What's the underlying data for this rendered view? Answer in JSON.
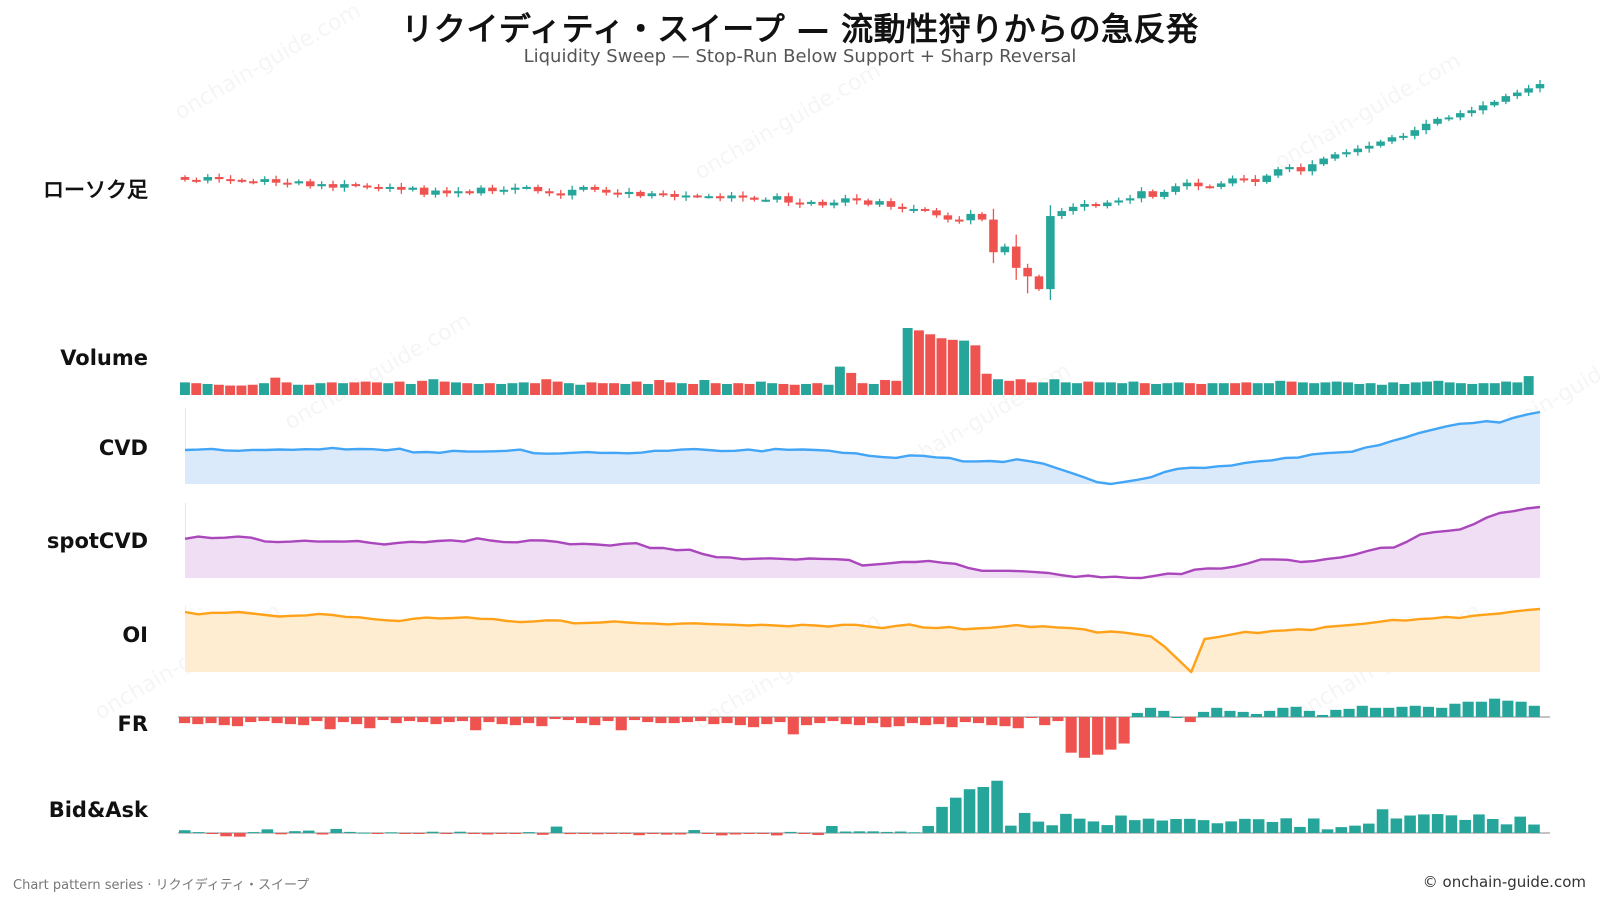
{
  "title": "リクイディティ・スイープ — 流動性狩りからの急反発",
  "subtitle": "Liquidity Sweep — Stop-Run Below Support + Sharp Reversal",
  "footer_left": "Chart pattern series · リクイディティ・スイープ",
  "footer_right": "© onchain-guide.com",
  "watermark": "onchain-guide.com",
  "colors": {
    "up": "#26a69a",
    "down": "#ef5350",
    "cvd": "#42a5f5",
    "cvd_fill": "#dbeafb",
    "spot_cvd": "#ab47bc",
    "spot_cvd_fill": "#f0def5",
    "oi": "#ffa21a",
    "oi_fill": "#ffedd2"
  },
  "chart_data": {
    "type": "multi-panel",
    "panels": [
      {
        "id": "candles",
        "label": "ローソク足",
        "type": "candlestick"
      },
      {
        "id": "volume",
        "label": "Volume",
        "type": "bar"
      },
      {
        "id": "cvd",
        "label": "CVD",
        "type": "area"
      },
      {
        "id": "spot_cvd",
        "label": "spotCVD",
        "type": "area"
      },
      {
        "id": "oi",
        "label": "OI",
        "type": "area"
      },
      {
        "id": "fr",
        "label": "FR",
        "type": "bar"
      },
      {
        "id": "bid_ask",
        "label": "Bid&Ask",
        "type": "bar"
      }
    ],
    "candles": {
      "start": 100.0,
      "sweep_low": 84.0,
      "end": 113.5,
      "closes": [
        100.0,
        99.9,
        100.4,
        100.1,
        100.0,
        99.8,
        99.7,
        100.1,
        99.6,
        99.5,
        99.8,
        99.1,
        99.4,
        98.9,
        99.4,
        99.2,
        99.0,
        98.8,
        99.0,
        98.6,
        98.9,
        97.9,
        98.5,
        98.1,
        98.4,
        98.1,
        98.9,
        98.4,
        98.6,
        98.9,
        99.0,
        98.4,
        98.1,
        97.8,
        98.6,
        99.0,
        98.6,
        98.2,
        98.0,
        98.3,
        97.7,
        98.1,
        98.0,
        97.6,
        97.8,
        97.7,
        97.7,
        97.4,
        97.8,
        97.5,
        97.2,
        97.2,
        97.7,
        96.8,
        96.6,
        96.9,
        96.4,
        96.8,
        97.4,
        97.1,
        96.5,
        97.0,
        96.2,
        95.9,
        95.9,
        95.7,
        95.0,
        94.4,
        94.3,
        95.2,
        94.4,
        89.8,
        90.6,
        87.6,
        86.4,
        84.6,
        94.9,
        95.6,
        96.2,
        96.6,
        96.3,
        96.8,
        97.1,
        97.4,
        98.4,
        97.6,
        98.3,
        99.1,
        99.6,
        99.1,
        99.0,
        99.5,
        100.2,
        100.1,
        99.7,
        100.6,
        101.5,
        101.8,
        101.2,
        102.2,
        103.0,
        103.6,
        103.9,
        104.4,
        104.8,
        105.4,
        106.0,
        106.2,
        107.0,
        107.9,
        108.6,
        108.8,
        109.4,
        109.8,
        110.5,
        111.0,
        111.8,
        112.3,
        112.9,
        113.5
      ],
      "opens": [
        100.4,
        100.0,
        99.9,
        100.4,
        100.1,
        100.0,
        99.8,
        99.7,
        100.1,
        99.6,
        99.5,
        99.8,
        99.1,
        99.4,
        98.9,
        99.4,
        99.2,
        99.0,
        98.8,
        99.0,
        98.6,
        98.9,
        97.9,
        98.5,
        98.1,
        98.4,
        98.1,
        98.9,
        98.4,
        98.6,
        98.9,
        99.0,
        98.4,
        98.1,
        97.8,
        98.6,
        99.0,
        98.6,
        98.2,
        98.0,
        98.3,
        97.7,
        98.1,
        98.0,
        97.6,
        97.8,
        97.7,
        97.7,
        97.4,
        97.8,
        97.5,
        97.2,
        97.2,
        97.7,
        96.8,
        96.6,
        96.9,
        96.4,
        96.8,
        97.4,
        97.1,
        96.5,
        97.0,
        96.2,
        95.9,
        95.9,
        95.7,
        95.0,
        94.4,
        94.3,
        95.2,
        94.4,
        89.8,
        90.6,
        87.6,
        86.4,
        84.6,
        94.9,
        95.6,
        96.2,
        96.6,
        96.3,
        96.8,
        97.1,
        97.4,
        98.4,
        97.6,
        98.3,
        99.1,
        99.6,
        99.1,
        99.0,
        99.5,
        100.2,
        100.1,
        99.7,
        100.6,
        101.5,
        101.8,
        101.2,
        102.2,
        103.0,
        103.6,
        103.9,
        104.4,
        104.8,
        105.4,
        106.0,
        106.2,
        107.0,
        107.9,
        108.6,
        108.8,
        109.4,
        109.8,
        110.5,
        111.0,
        111.8,
        112.3,
        112.9
      ]
    },
    "volume": [
      16,
      15,
      14,
      13,
      12,
      12,
      13,
      15,
      22,
      16,
      13,
      13,
      15,
      16,
      15,
      16,
      17,
      16,
      15,
      17,
      14,
      18,
      20,
      17,
      16,
      15,
      14,
      15,
      14,
      15,
      16,
      15,
      20,
      17,
      15,
      13,
      16,
      15,
      15,
      14,
      17,
      14,
      19,
      16,
      15,
      14,
      19,
      15,
      14,
      15,
      14,
      17,
      15,
      14,
      13,
      14,
      15,
      13,
      36,
      28,
      15,
      14,
      19,
      18,
      85,
      82,
      77,
      72,
      70,
      69,
      63,
      27,
      20,
      18,
      20,
      16,
      16,
      20,
      16,
      15,
      17,
      16,
      16,
      15,
      17,
      15,
      14,
      15,
      16,
      15,
      14,
      15,
      15,
      15,
      16,
      15,
      15,
      18,
      17,
      16,
      15,
      16,
      17,
      16,
      14,
      15,
      13,
      16,
      14,
      16,
      17,
      18,
      16,
      15,
      14,
      15,
      15,
      17,
      16,
      24
    ],
    "cvd_start": 0,
    "cvd_series": [
      0,
      0.3,
      0.9,
      -0.3,
      -0.6,
      0.1,
      0.0,
      0.4,
      0.2,
      0.6,
      0.5,
      1.6,
      0.5,
      0.8,
      0.6,
      -0.2,
      1.0,
      -1.8,
      -1.5,
      -2.1,
      -0.6,
      -1.1,
      -1.2,
      -1.0,
      -0.6,
      0.3,
      -2.4,
      -2.8,
      -2.6,
      -2.0,
      -1.6,
      -2.2,
      -2.1,
      -2.5,
      -2.0,
      -0.6,
      -0.6,
      0.3,
      0.7,
      0.0,
      -0.8,
      -0.6,
      0.3,
      -1.0,
      0.9,
      0.2,
      0.4,
      0.0,
      -0.5,
      -2.1,
      -2.5,
      -4.4,
      -5.4,
      -6.0,
      -4.1,
      -4.4,
      -5.6,
      -6.1,
      -8.7,
      -8.7,
      -8.4,
      -9.1,
      -7.1,
      -8.6,
      -10.4,
      -13.9,
      -17.2,
      -20.8,
      -24.5,
      -25.9,
      -24.3,
      -22.7,
      -20.7,
      -16.8,
      -14.3,
      -13.5,
      -13.6,
      -12.4,
      -11.9,
      -9.8,
      -8.6,
      -7.9,
      -6.0,
      -5.8,
      -3.3,
      -2.4,
      -1.8,
      -1.3,
      1.9,
      3.7,
      7.0,
      9.7,
      13.1,
      15.5,
      18.0,
      20.0,
      20.5,
      22.0,
      21.0,
      24.5,
      27.0,
      29.0
    ],
    "spot_cvd_series": [
      0,
      1.0,
      0.3,
      0.5,
      1.0,
      0.5,
      -1.2,
      -1.5,
      -1.3,
      -0.9,
      -1.3,
      -1.2,
      -1.3,
      -1.0,
      -1.9,
      -2.6,
      -1.9,
      -1.4,
      -1.6,
      -1.0,
      -0.7,
      -1.3,
      0.2,
      -0.8,
      -1.5,
      -1.6,
      -0.7,
      -0.8,
      -1.4,
      -2.5,
      -2.3,
      -2.6,
      -3.1,
      -2.3,
      -2.0,
      -4.2,
      -4.2,
      -5.2,
      -5.0,
      -7.0,
      -8.4,
      -8.5,
      -9.3,
      -9.1,
      -8.9,
      -9.2,
      -9.5,
      -9.0,
      -9.2,
      -9.3,
      -9.7,
      -12.2,
      -11.7,
      -11.2,
      -10.6,
      -10.6,
      -10.1,
      -10.9,
      -11.4,
      -13.4,
      -14.6,
      -14.6,
      -14.6,
      -14.8,
      -15.2,
      -15.6,
      -16.6,
      -17.4,
      -16.8,
      -17.6,
      -17.3,
      -17.8,
      -17.9,
      -16.9,
      -15.9,
      -16.1,
      -14.1,
      -13.5,
      -13.6,
      -12.7,
      -11.3,
      -9.4,
      -9.4,
      -9.6,
      -10.6,
      -10.2,
      -9.2,
      -8.5,
      -7.3,
      -5.6,
      -4.1,
      -4.0,
      -1.3,
      2.0,
      3.0,
      3.6,
      4.3,
      6.6,
      9.7,
      11.8,
      12.6,
      13.8,
      14.5
    ],
    "oi_series": [
      100,
      99.4,
      99.8,
      99.8,
      100.0,
      99.6,
      99.2,
      98.8,
      99.0,
      99.1,
      99.5,
      99.2,
      98.7,
      98.6,
      98.1,
      97.8,
      97.6,
      98.2,
      98.5,
      98.3,
      98.4,
      98.6,
      98.2,
      98.1,
      97.6,
      97.3,
      97.5,
      97.8,
      97.7,
      97.0,
      97.1,
      97.2,
      97.5,
      97.2,
      97.0,
      96.9,
      96.7,
      96.9,
      97.0,
      96.8,
      96.7,
      96.6,
      96.4,
      96.6,
      96.4,
      96.2,
      96.6,
      96.4,
      96.1,
      96.6,
      96.6,
      96.1,
      95.7,
      96.3,
      96.7,
      95.9,
      95.7,
      96.0,
      95.4,
      95.6,
      95.8,
      96.1,
      96.5,
      96.0,
      96.2,
      95.9,
      95.7,
      95.4,
      94.5,
      94.8,
      94.5,
      94.0,
      93.5,
      90.8,
      87.4,
      84.0,
      92.8,
      93.3,
      94.0,
      94.7,
      94.4,
      94.9,
      95.1,
      95.4,
      95.2,
      96.0,
      96.3,
      96.6,
      96.9,
      97.4,
      97.9,
      97.7,
      98.1,
      98.3,
      98.7,
      98.4,
      99.0,
      99.3,
      99.6,
      100.1,
      100.5,
      100.8
    ],
    "fr": [
      -0.6,
      -0.7,
      -0.6,
      -0.8,
      -0.9,
      -0.5,
      -0.4,
      -0.6,
      -0.7,
      -0.8,
      -0.4,
      -1.2,
      -0.5,
      -0.7,
      -1.1,
      -0.3,
      -0.6,
      -0.4,
      -0.5,
      -0.7,
      -0.5,
      -0.4,
      -1.3,
      -0.5,
      -0.7,
      -0.8,
      -0.6,
      -0.9,
      -0.2,
      -0.3,
      -0.6,
      -0.8,
      -0.4,
      -1.3,
      -0.3,
      -0.5,
      -0.6,
      -0.6,
      -0.5,
      -0.4,
      -0.7,
      -0.6,
      -0.8,
      -1.0,
      -0.7,
      -0.5,
      -1.7,
      -0.8,
      -0.6,
      -0.4,
      -0.7,
      -0.8,
      -0.6,
      -1.0,
      -0.9,
      -0.6,
      -0.8,
      -0.7,
      -1.0,
      -0.5,
      -0.6,
      -0.8,
      -0.9,
      -1.1,
      -0.1,
      -0.8,
      -0.4,
      -3.5,
      -4.0,
      -3.7,
      -3.2,
      -2.6,
      0.4,
      0.9,
      0.6,
      0.0,
      -0.5,
      0.5,
      0.9,
      0.6,
      0.5,
      0.3,
      0.6,
      0.9,
      1.0,
      0.6,
      0.2,
      0.7,
      0.8,
      1.1,
      0.9,
      0.9,
      1.0,
      1.1,
      1.0,
      0.9,
      1.3,
      1.5,
      1.5,
      1.8,
      1.6,
      1.5,
      1.1
    ],
    "bid_ask": [
      1.5,
      0.5,
      -0.5,
      -1.8,
      -2.0,
      0.5,
      2.0,
      -0.7,
      1.0,
      1.3,
      -0.8,
      2.2,
      0.6,
      0.2,
      -0.5,
      0.4,
      -0.4,
      -0.3,
      0.7,
      -0.3,
      0.7,
      -0.4,
      -0.8,
      -0.5,
      -0.5,
      0.5,
      -1.0,
      3.5,
      -0.6,
      -0.4,
      -0.7,
      -0.4,
      -0.5,
      -1.2,
      -0.5,
      -0.9,
      -0.8,
      1.6,
      -0.5,
      -1.3,
      -0.8,
      -0.4,
      -0.4,
      -1.3,
      0.6,
      -0.5,
      -1.1,
      3.8,
      0.8,
      0.9,
      0.9,
      0.6,
      0.8,
      0.4,
      3.8,
      14.2,
      19.2,
      23.8,
      25.0,
      28.4,
      4.0,
      10.9,
      6.2,
      4.2,
      10.4,
      7.8,
      6.3,
      4.3,
      9.5,
      7.0,
      7.8,
      6.8,
      7.6,
      7.7,
      7.0,
      5.3,
      6.3,
      7.7,
      7.5,
      6.0,
      8.0,
      3.3,
      7.9,
      2.0,
      3.2,
      4.0,
      5.1,
      12.9,
      7.9,
      9.5,
      10.1,
      10.3,
      9.6,
      7.1,
      10.1,
      7.6,
      4.7,
      8.9,
      4.6
    ]
  }
}
